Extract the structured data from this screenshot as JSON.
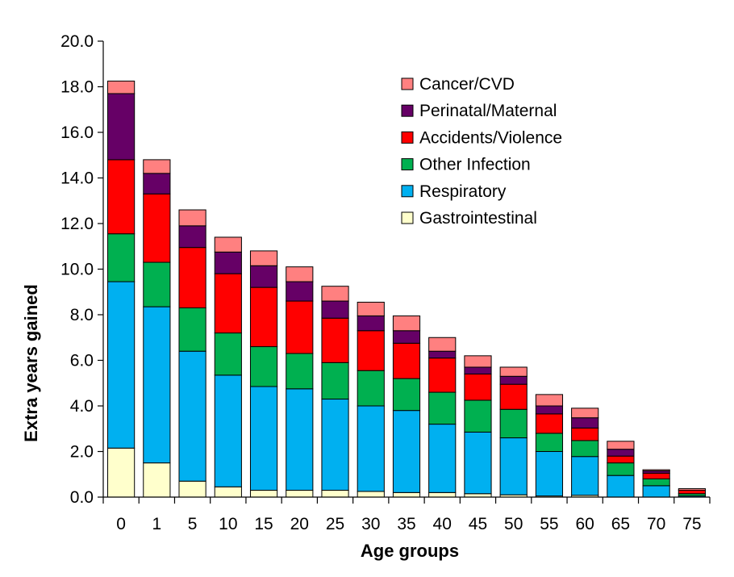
{
  "chart_data": {
    "type": "bar",
    "stacked": true,
    "title": "",
    "xlabel": "Age groups",
    "ylabel": "Extra years gained",
    "ylim": [
      0,
      20
    ],
    "yticks": [
      "0.0",
      "2.0",
      "4.0",
      "6.0",
      "8.0",
      "10.0",
      "12.0",
      "14.0",
      "16.0",
      "18.0",
      "20.0"
    ],
    "grid": false,
    "legend_position": "top-right",
    "categories": [
      "0",
      "1",
      "5",
      "10",
      "15",
      "20",
      "25",
      "30",
      "35",
      "40",
      "45",
      "50",
      "55",
      "60",
      "65",
      "70",
      "75"
    ],
    "series": [
      {
        "name": "Gastrointestinal",
        "color": "#FFFFCC",
        "values": [
          2.15,
          1.5,
          0.7,
          0.45,
          0.3,
          0.3,
          0.3,
          0.25,
          0.2,
          0.2,
          0.15,
          0.1,
          0.05,
          0.08,
          0.0,
          0.0,
          0.0
        ]
      },
      {
        "name": "Respiratory",
        "color": "#00B0F0",
        "values": [
          7.3,
          6.85,
          5.7,
          4.9,
          4.55,
          4.45,
          4.0,
          3.75,
          3.6,
          3.0,
          2.7,
          2.5,
          1.95,
          1.7,
          0.95,
          0.5,
          0.05
        ]
      },
      {
        "name": "Other Infection",
        "color": "#00B050",
        "values": [
          2.1,
          1.95,
          1.9,
          1.85,
          1.75,
          1.55,
          1.6,
          1.55,
          1.4,
          1.4,
          1.4,
          1.25,
          0.8,
          0.7,
          0.55,
          0.3,
          0.1
        ]
      },
      {
        "name": "Accidents/Violence",
        "color": "#FF0000",
        "values": [
          3.25,
          3.0,
          2.65,
          2.6,
          2.6,
          2.3,
          1.95,
          1.75,
          1.55,
          1.5,
          1.15,
          1.1,
          0.85,
          0.55,
          0.3,
          0.25,
          0.15
        ]
      },
      {
        "name": "Perinatal/Maternal",
        "color": "#660066",
        "values": [
          2.9,
          0.9,
          0.95,
          0.95,
          0.95,
          0.85,
          0.75,
          0.65,
          0.55,
          0.3,
          0.3,
          0.35,
          0.35,
          0.45,
          0.3,
          0.1,
          0.0
        ]
      },
      {
        "name": "Cancer/CVD",
        "color": "#FF8080",
        "values": [
          0.55,
          0.6,
          0.7,
          0.65,
          0.65,
          0.65,
          0.65,
          0.6,
          0.65,
          0.6,
          0.5,
          0.4,
          0.5,
          0.42,
          0.35,
          0.05,
          0.07
        ]
      }
    ]
  }
}
